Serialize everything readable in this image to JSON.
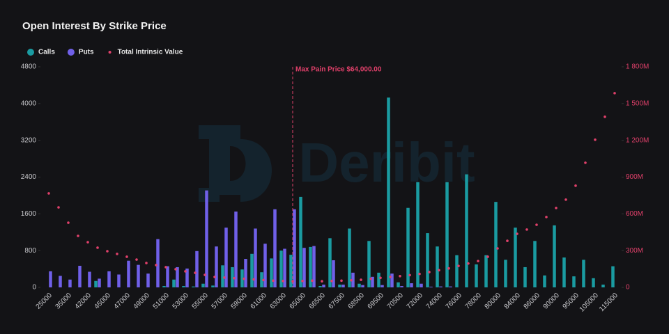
{
  "chart_data": {
    "type": "bar",
    "title": "Open Interest By Strike Price",
    "watermark": "Deribit",
    "categories": [
      "25000",
      null,
      "35000",
      null,
      "42000",
      null,
      "45000",
      null,
      "47000",
      null,
      "49000",
      null,
      "51000",
      null,
      "53000",
      null,
      "55000",
      null,
      "57000",
      null,
      "59000",
      null,
      "61000",
      null,
      "63000",
      null,
      "65000",
      null,
      "66500",
      null,
      "67500",
      null,
      "68500",
      null,
      "69500",
      null,
      "70500",
      null,
      "72000",
      null,
      "74000",
      null,
      "76000",
      null,
      "78000",
      null,
      "80000",
      null,
      "84000",
      null,
      "86000",
      null,
      "90000",
      null,
      "95000",
      null,
      "105000",
      null,
      "115000"
    ],
    "series": [
      {
        "name": "Calls",
        "color": "#1a9ba1",
        "values": [
          0,
          0,
          0,
          0,
          0,
          140,
          0,
          0,
          0,
          0,
          0,
          0,
          30,
          170,
          30,
          20,
          80,
          40,
          480,
          440,
          390,
          730,
          330,
          630,
          800,
          710,
          1970,
          880,
          30,
          1070,
          60,
          1280,
          80,
          1010,
          320,
          4130,
          110,
          1730,
          2290,
          1180,
          890,
          2290,
          700,
          2460,
          500,
          700,
          1860,
          600,
          1300,
          440,
          1010,
          260,
          1350,
          650,
          240,
          600,
          200,
          60,
          460
        ]
      },
      {
        "name": "Puts",
        "color": "#7060e8",
        "values": [
          350,
          250,
          170,
          470,
          340,
          190,
          350,
          280,
          580,
          490,
          300,
          1050,
          460,
          440,
          410,
          790,
          2110,
          890,
          1300,
          1650,
          620,
          1280,
          950,
          1700,
          840,
          1700,
          860,
          900,
          60,
          590,
          60,
          320,
          50,
          230,
          50,
          300,
          30,
          90,
          80,
          15,
          20,
          20,
          0,
          0,
          0,
          0,
          0,
          0,
          0,
          0,
          0,
          0,
          0,
          0,
          0,
          0,
          0,
          0,
          0
        ]
      },
      {
        "name": "Total Intrinsic Value",
        "color": "#e0406a",
        "type": "scatter",
        "axis": "y2",
        "values": [
          767,
          653,
          528,
          420,
          369,
          324,
          295,
          273,
          250,
          227,
          199,
          182,
          165,
          148,
          131,
          119,
          102,
          85,
          80,
          75,
          70,
          65,
          60,
          55,
          52,
          50,
          52,
          55,
          50,
          52,
          55,
          58,
          62,
          70,
          78,
          85,
          92,
          100,
          110,
          125,
          140,
          155,
          175,
          195,
          215,
          250,
          318,
          380,
          437,
          472,
          511,
          574,
          648,
          716,
          830,
          1017,
          1205,
          1392,
          1585
        ]
      }
    ],
    "ylim": [
      0,
      4800
    ],
    "yticks": [
      0,
      800,
      1600,
      2400,
      3200,
      4000,
      4800
    ],
    "y2lim": [
      0,
      1800
    ],
    "y2ticks": [
      0,
      {
        "value": 300,
        "label": "300M"
      },
      {
        "value": 600,
        "label": "600M"
      },
      {
        "value": 900,
        "label": "900M"
      },
      {
        "value": 1200,
        "label": "1 200M"
      },
      {
        "value": 1500,
        "label": "1 500M"
      },
      {
        "value": 1800,
        "label": "1 800M"
      }
    ],
    "annotation": {
      "text": "Max Pain Price $64,000.00",
      "x": 64000,
      "color": "#e0406a"
    },
    "grid": false
  }
}
